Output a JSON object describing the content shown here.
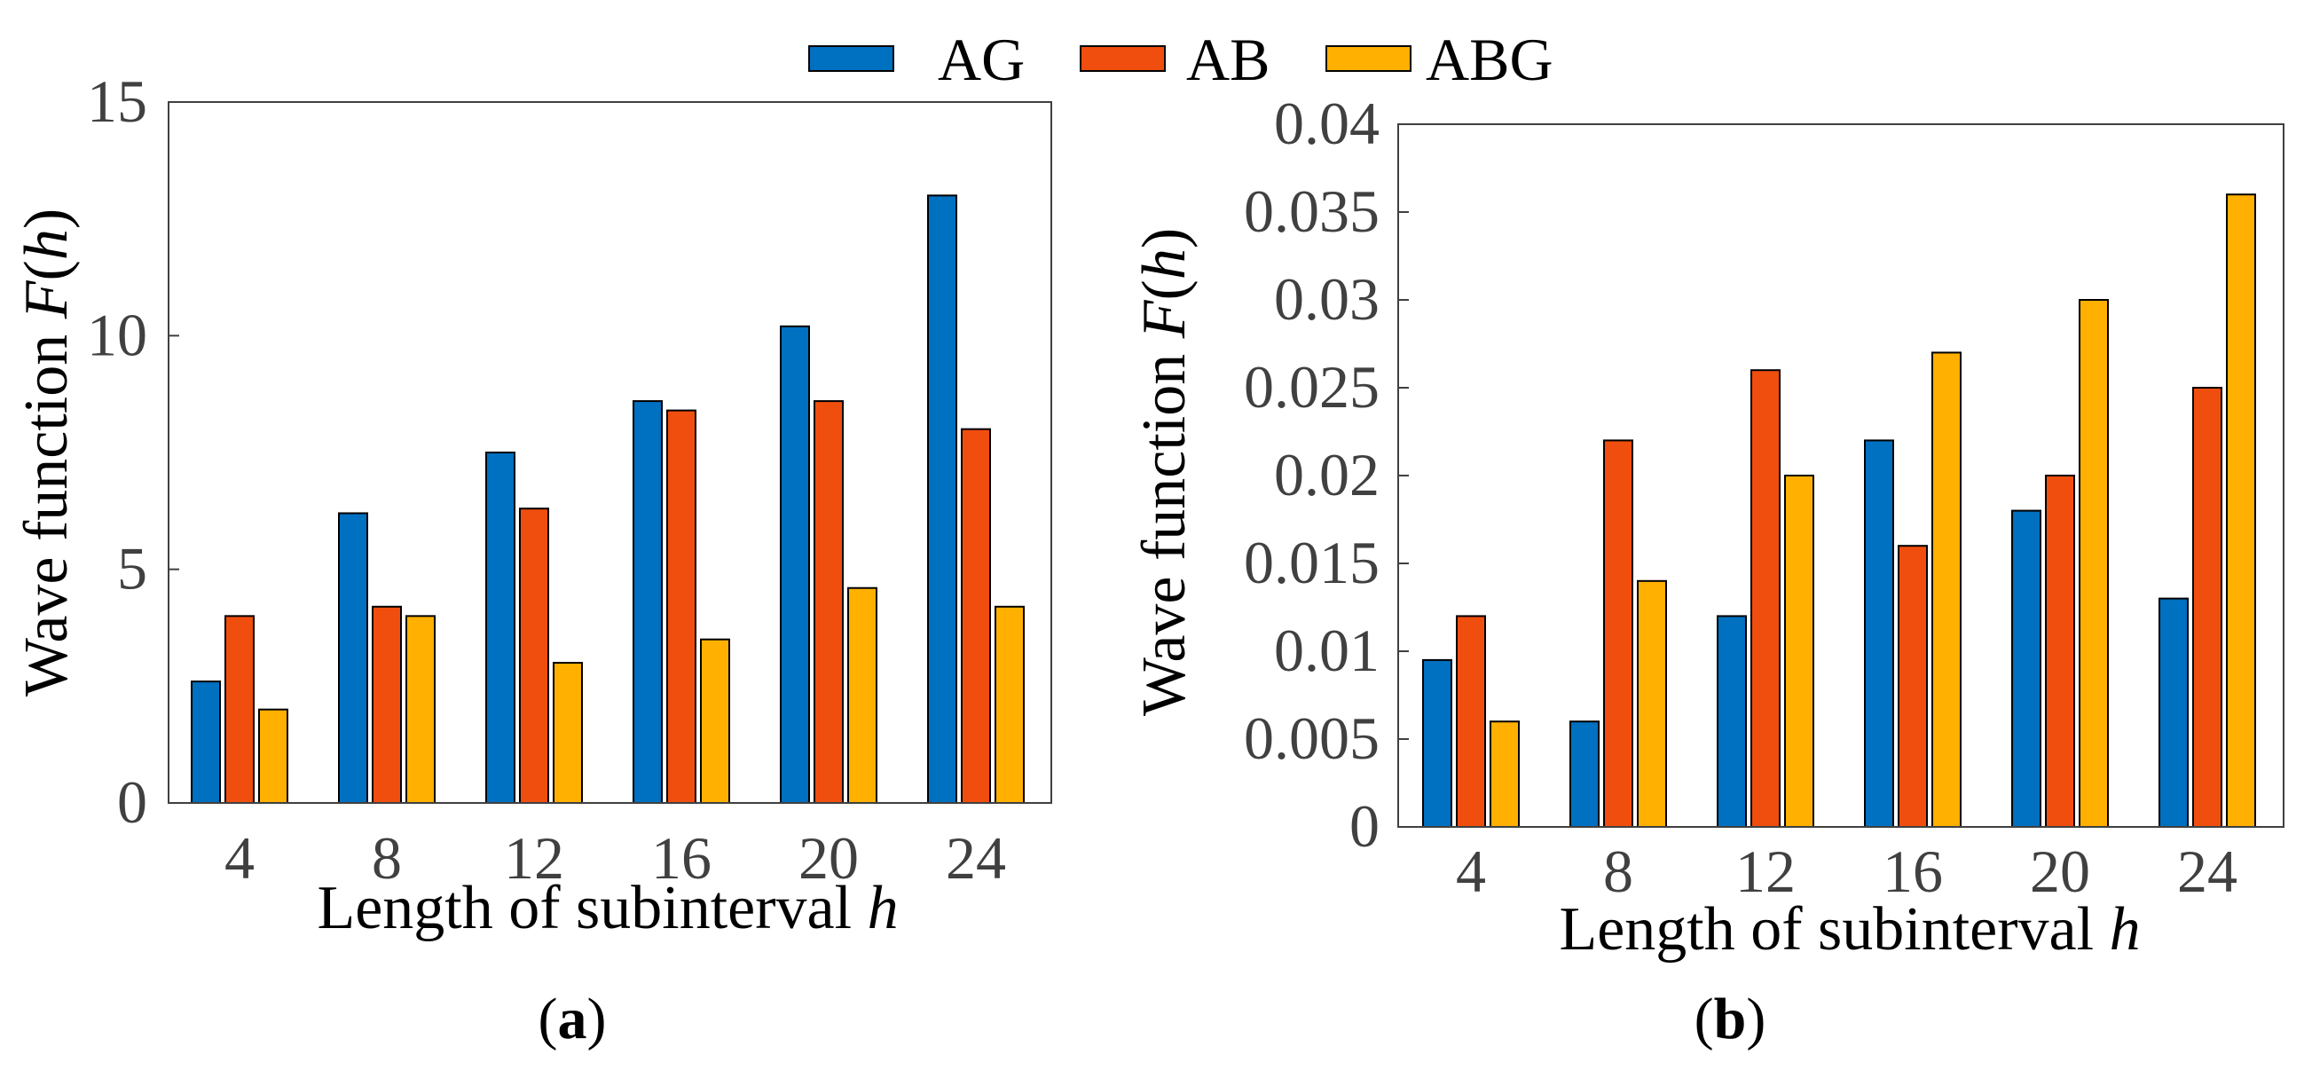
{
  "legend": [
    {
      "name": "AG",
      "color": "#0070C0"
    },
    {
      "name": "AB",
      "color": "#F04E0E"
    },
    {
      "name": "ABG",
      "color": "#FFB000"
    }
  ],
  "chart_data": [
    {
      "type": "bar",
      "panel_label": {
        "open": "(",
        "letter": "a",
        "close": ")"
      },
      "xlabel": {
        "text": "Length of subinterval ",
        "var": "h"
      },
      "ylabel": {
        "text": "Wave function ",
        "var": "F",
        "open": "(",
        "arg": "h",
        "close": ")"
      },
      "categories": [
        "4",
        "8",
        "12",
        "16",
        "20",
        "24"
      ],
      "ylim": [
        0,
        15
      ],
      "yticks": [
        0,
        5,
        10,
        15
      ],
      "ytick_labels": [
        "0",
        "5",
        "10",
        "15"
      ],
      "grid": false,
      "series": [
        {
          "name": "AG",
          "values": [
            2.6,
            6.2,
            7.5,
            8.6,
            10.2,
            13.0
          ]
        },
        {
          "name": "AB",
          "values": [
            4.0,
            4.2,
            6.3,
            8.4,
            8.6,
            8.0
          ]
        },
        {
          "name": "ABG",
          "values": [
            2.0,
            4.0,
            3.0,
            3.5,
            4.6,
            4.2
          ]
        }
      ]
    },
    {
      "type": "bar",
      "panel_label": {
        "open": "(",
        "letter": "b",
        "close": ")"
      },
      "xlabel": {
        "text": "Length of subinterval ",
        "var": "h"
      },
      "ylabel": {
        "text": "Wave function ",
        "var": "F",
        "open": "(",
        "arg": "h",
        "close": ")"
      },
      "categories": [
        "4",
        "8",
        "12",
        "16",
        "20",
        "24"
      ],
      "ylim": [
        0,
        0.04
      ],
      "yticks": [
        0,
        0.005,
        0.01,
        0.015,
        0.02,
        0.025,
        0.03,
        0.035,
        0.04
      ],
      "ytick_labels": [
        "0",
        "0.005",
        "0.01",
        "0.015",
        "0.02",
        "0.025",
        "0.03",
        "0.035",
        "0.04"
      ],
      "grid": false,
      "series": [
        {
          "name": "AG",
          "values": [
            0.0095,
            0.006,
            0.012,
            0.022,
            0.018,
            0.013
          ]
        },
        {
          "name": "AB",
          "values": [
            0.012,
            0.022,
            0.026,
            0.016,
            0.02,
            0.025
          ]
        },
        {
          "name": "ABG",
          "values": [
            0.006,
            0.014,
            0.02,
            0.027,
            0.03,
            0.036
          ]
        }
      ]
    }
  ]
}
